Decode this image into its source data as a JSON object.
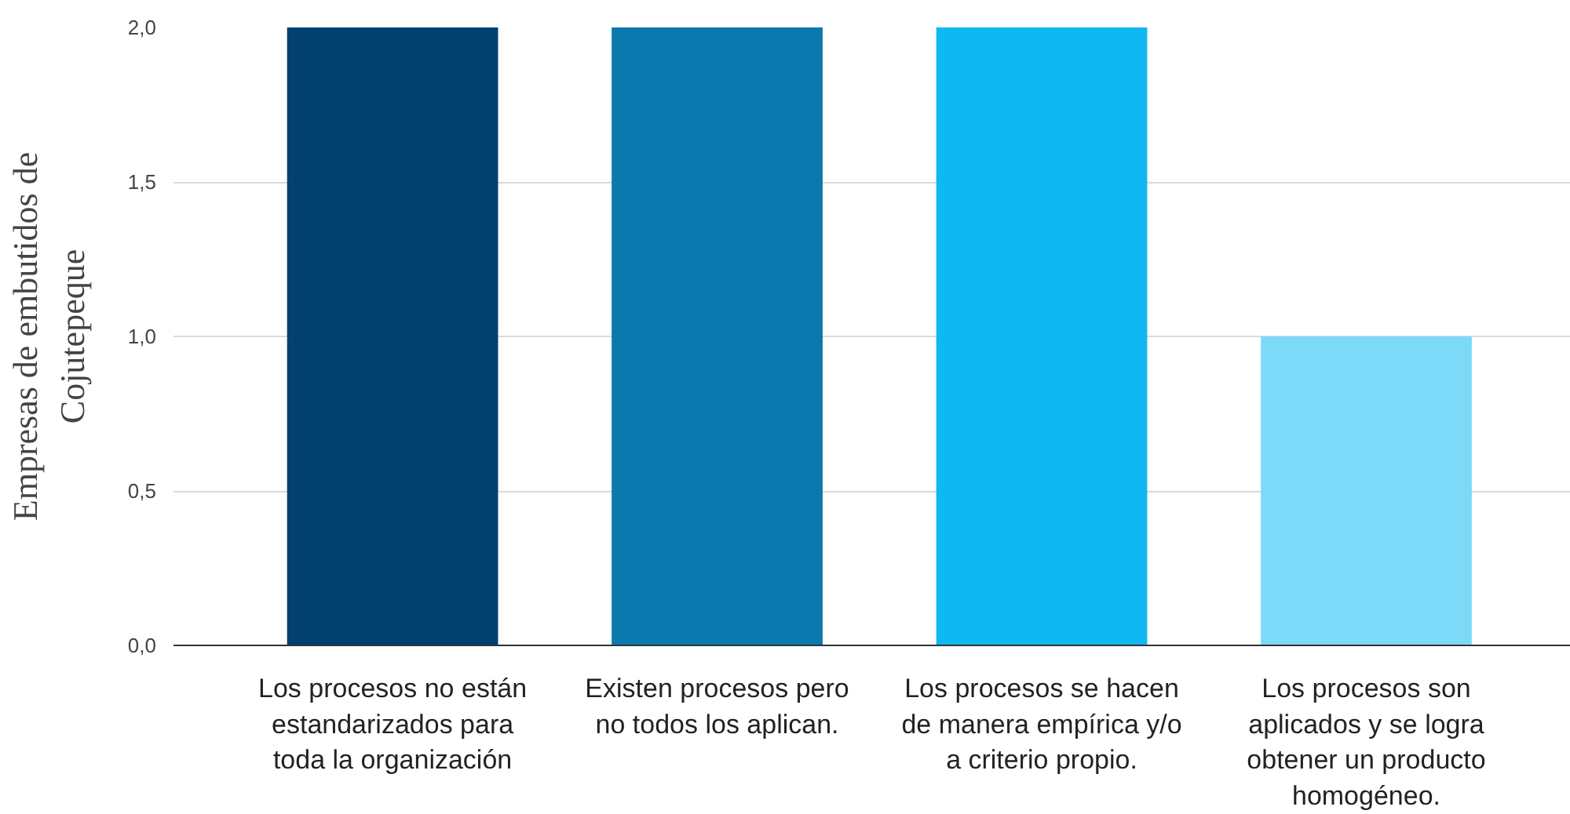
{
  "chart_data": {
    "type": "bar",
    "ylabel": "Empresas de embutidos de Cojutepeque",
    "categories": [
      "Los procesos no están estandarizados para toda la organización",
      "Existen procesos pero no todos los aplican.",
      "Los procesos se hacen de manera empírica y/o a criterio propio.",
      "Los procesos son aplicados y se logra obtener un producto homogéneo."
    ],
    "values": [
      2,
      2,
      2,
      1
    ],
    "colors": [
      "#02406f",
      "#0b78ae",
      "#10b8f1",
      "#7dd9f8"
    ],
    "ylim": [
      0,
      2
    ],
    "yticks": [
      {
        "value": 0,
        "label": "0,0"
      },
      {
        "value": 0.5,
        "label": "0,5"
      },
      {
        "value": 1,
        "label": "1,0"
      },
      {
        "value": 1.5,
        "label": "1,5"
      },
      {
        "value": 2,
        "label": "2,0"
      }
    ],
    "grid": "y"
  }
}
